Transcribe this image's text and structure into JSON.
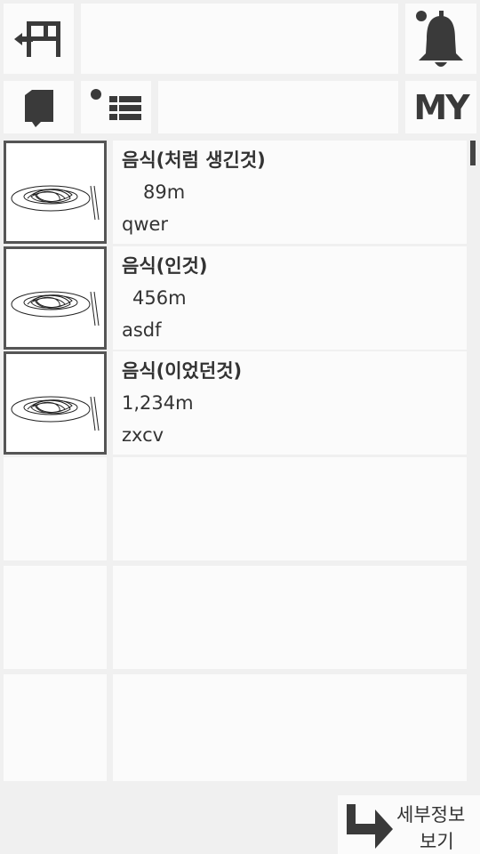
{
  "header": {
    "search_placeholder": "",
    "filter_placeholder": "",
    "my_label": "MY"
  },
  "list": {
    "items": [
      {
        "name": "음식(처럼 생긴것)",
        "distance": "89m",
        "user": "qwer"
      },
      {
        "name": "음식(인것)",
        "distance": "456m",
        "user": "asdf"
      },
      {
        "name": "음식(이었던것)",
        "distance": "1,234m",
        "user": "zxcv"
      }
    ]
  },
  "footer": {
    "detail_label_line1": "세부정보",
    "detail_label_line2": "보기"
  },
  "colors": {
    "icon": "#3a3a3a",
    "background": "#f0f0f0",
    "panel": "#fbfbfb"
  }
}
